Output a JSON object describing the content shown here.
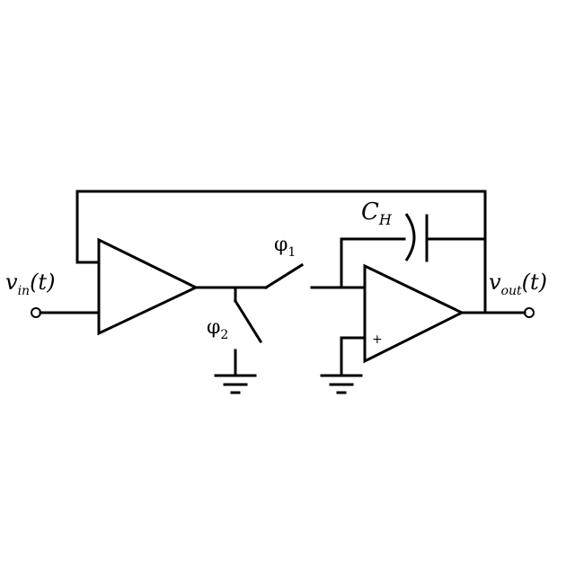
{
  "labels": {
    "vin": "v",
    "vin_sub": "in",
    "vin_arg": "(t)",
    "vout": "v",
    "vout_sub": "out",
    "vout_arg": "(t)",
    "cap": "C",
    "cap_sub": "H",
    "phi1": "φ",
    "phi1_sub": "1",
    "phi2": "φ",
    "phi2_sub": "2"
  },
  "components": {
    "amp1": "buffer",
    "amp2": "opamp",
    "amp2_sign": "+"
  }
}
